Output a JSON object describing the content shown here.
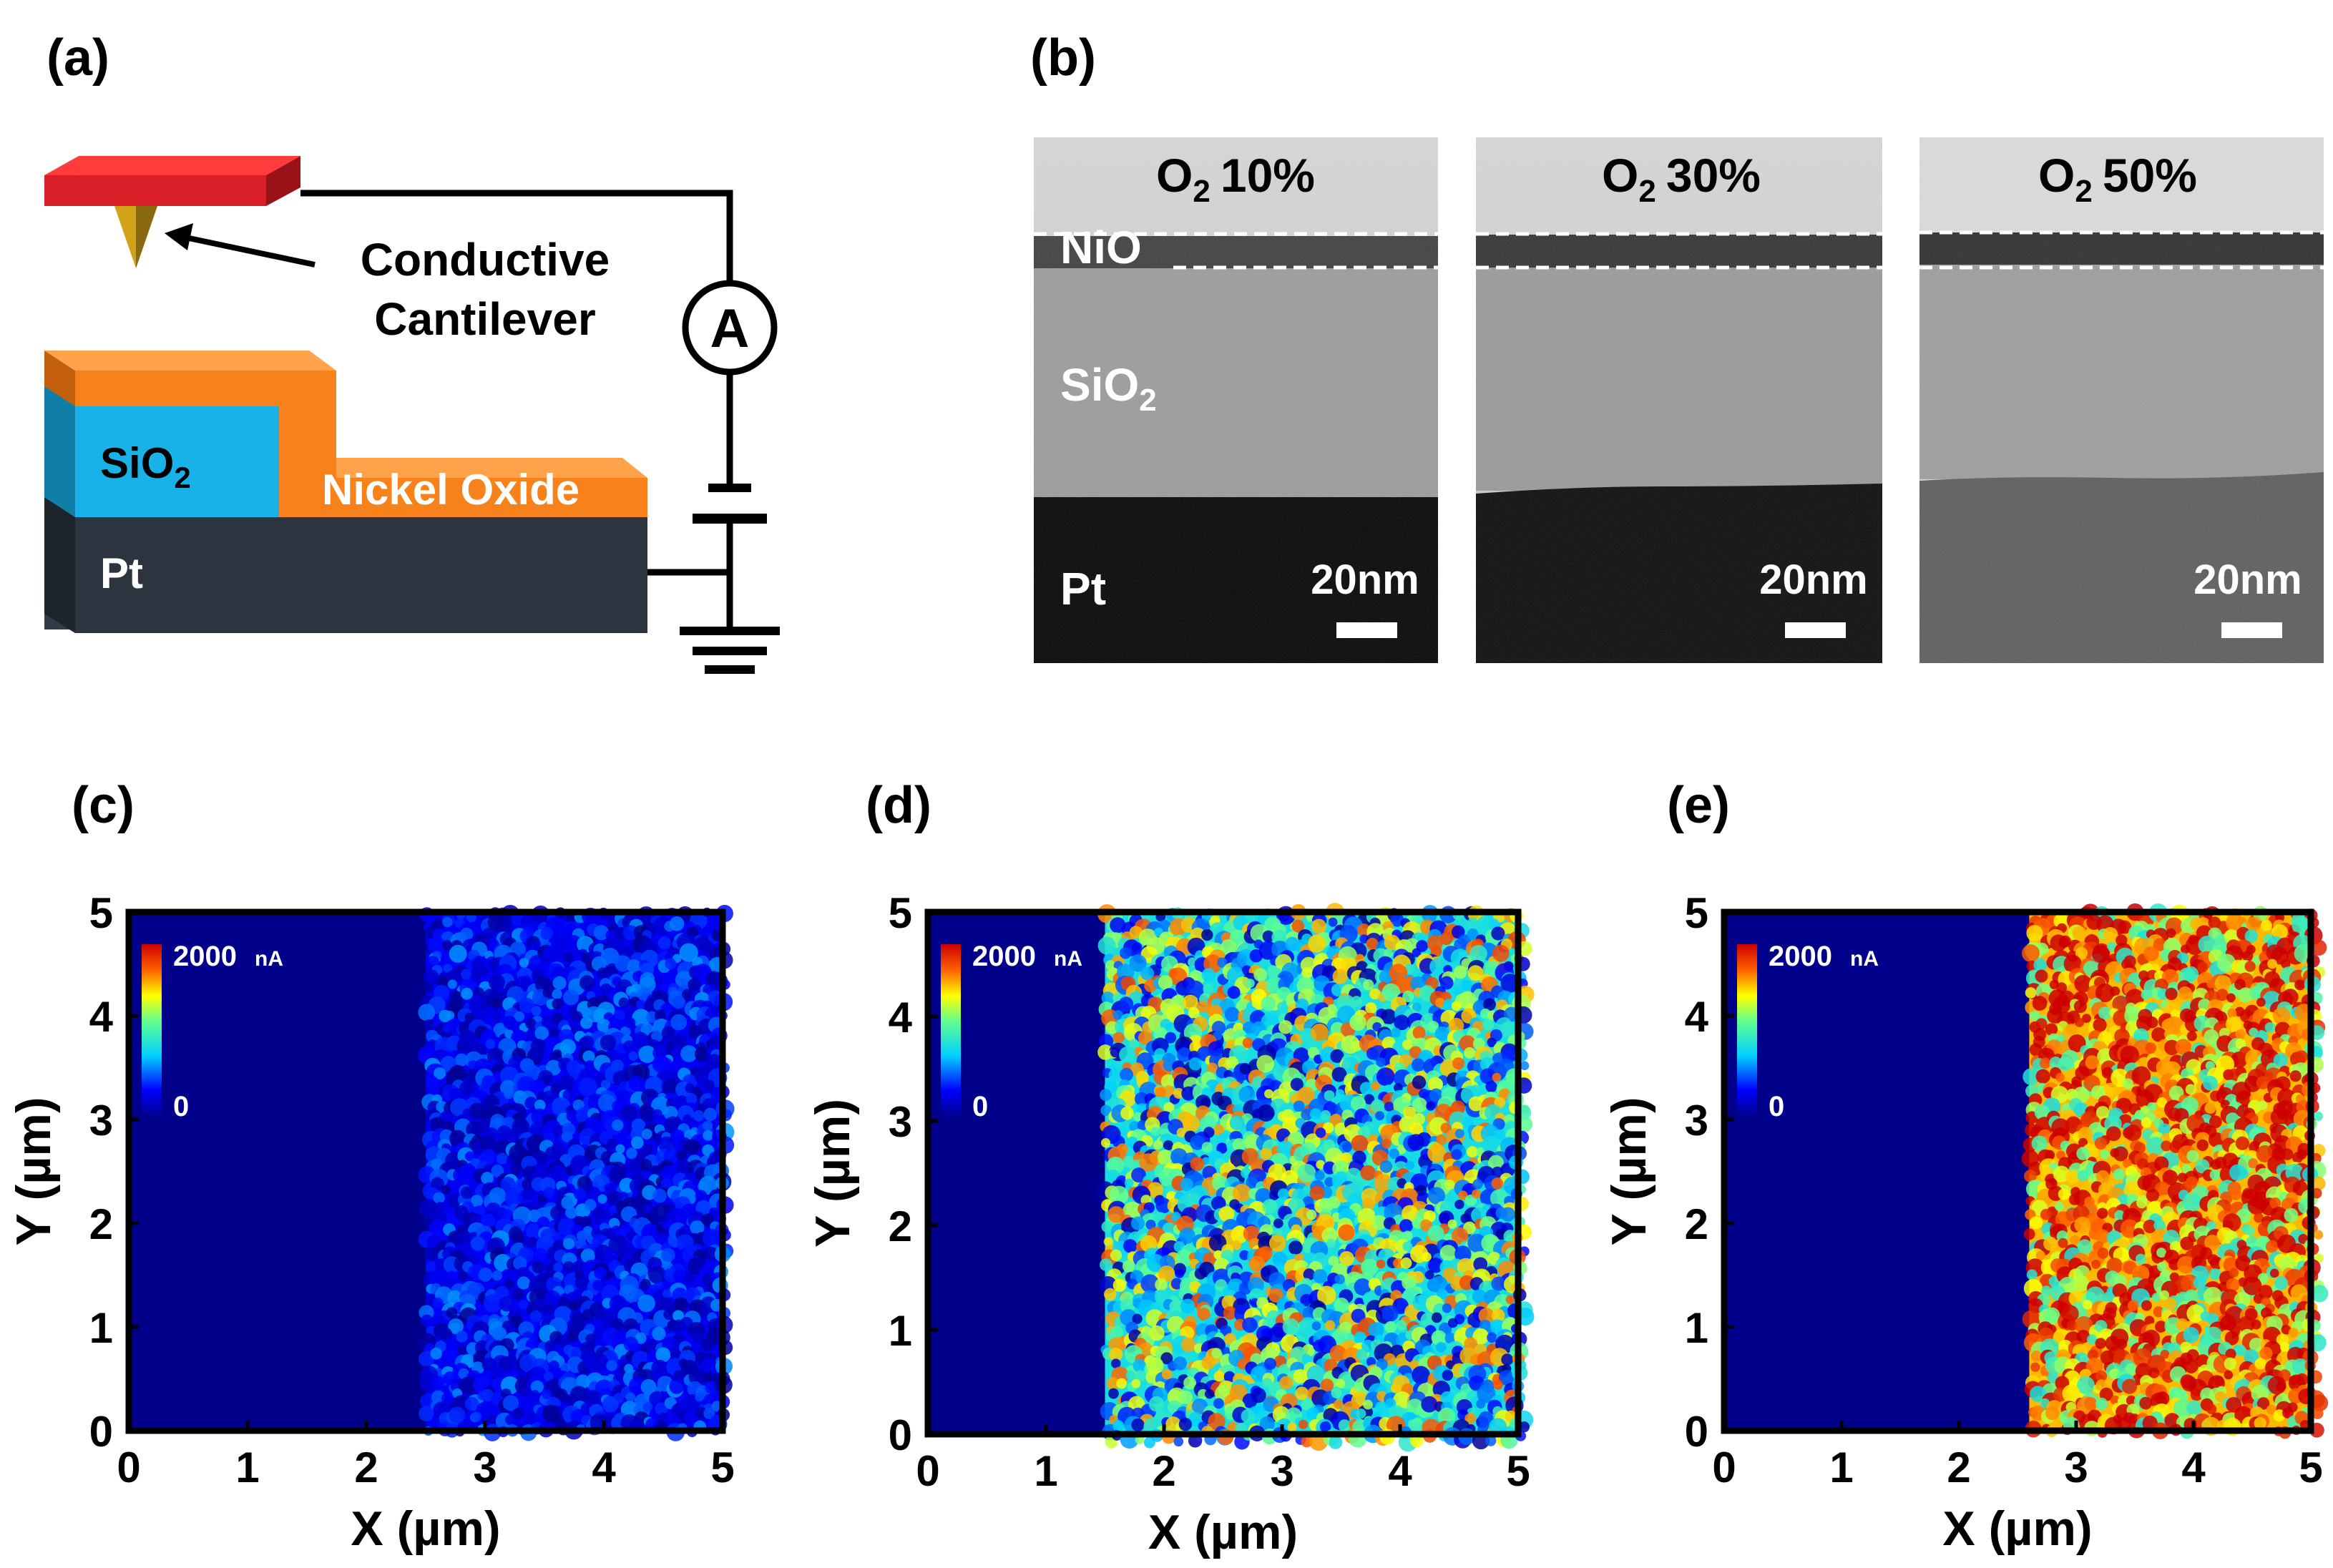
{
  "panels": {
    "a": "(a)",
    "b": "(b)",
    "c": "(c)",
    "d": "(d)",
    "e": "(e)"
  },
  "schematic": {
    "cantilever_label_line1": "Conductive",
    "cantilever_label_line2": "Cantilever",
    "ammeter": "A",
    "sio2_main": "SiO",
    "sio2_sub": "2",
    "nickel_oxide": "Nickel Oxide",
    "pt": "Pt",
    "colors": {
      "cantilever": "#e8202a",
      "tip": "#c9a21a",
      "nio": "#f7821b",
      "sio2": "#19b2e8",
      "pt": "#2c3440"
    }
  },
  "tem": {
    "images": [
      {
        "o2_main": "O",
        "o2_sub": "2",
        "o2_value": "10%",
        "scale_bar": "20nm"
      },
      {
        "o2_main": "O",
        "o2_sub": "2",
        "o2_value": "30%",
        "scale_bar": "20nm"
      },
      {
        "o2_main": "O",
        "o2_sub": "2",
        "o2_value": "50%",
        "scale_bar": "20nm"
      }
    ],
    "nio_label": "NiO",
    "sio2_main": "SiO",
    "sio2_sub": "2",
    "pt_label": "Pt"
  },
  "chart_data": [
    {
      "type": "heatmap",
      "panel": "(c)",
      "title": "",
      "xlabel": "X (µm)",
      "ylabel": "Y (µm)",
      "xlim": [
        0,
        5
      ],
      "ylim": [
        0,
        5
      ],
      "xticks": [
        "0",
        "1",
        "2",
        "3",
        "4",
        "5"
      ],
      "yticks": [
        "0",
        "1",
        "2",
        "3",
        "4",
        "5"
      ],
      "colorbar": {
        "max_label": "2000",
        "unit": "nA",
        "min_label": "0"
      },
      "sio2_region_x_um": [
        0,
        2.5
      ],
      "nio_region_x_um": [
        2.5,
        5
      ],
      "nio_region_intensity": 0.15
    },
    {
      "type": "heatmap",
      "panel": "(d)",
      "title": "",
      "xlabel": "X (µm)",
      "ylabel": "Y (µm)",
      "xlim": [
        0,
        5
      ],
      "ylim": [
        0,
        5
      ],
      "xticks": [
        "0",
        "1",
        "2",
        "3",
        "4",
        "5"
      ],
      "yticks": [
        "0",
        "1",
        "2",
        "3",
        "4",
        "5"
      ],
      "colorbar": {
        "max_label": "2000",
        "unit": "nA",
        "min_label": "0"
      },
      "sio2_region_x_um": [
        0,
        1.5
      ],
      "nio_region_x_um": [
        1.5,
        5
      ],
      "nio_region_intensity": 0.45
    },
    {
      "type": "heatmap",
      "panel": "(e)",
      "title": "",
      "xlabel": "X (µm)",
      "ylabel": "Y (µm)",
      "xlim": [
        0,
        5
      ],
      "ylim": [
        0,
        5
      ],
      "xticks": [
        "0",
        "1",
        "2",
        "3",
        "4",
        "5"
      ],
      "yticks": [
        "0",
        "1",
        "2",
        "3",
        "4",
        "5"
      ],
      "colorbar": {
        "max_label": "2000",
        "unit": "nA",
        "min_label": "0"
      },
      "sio2_region_x_um": [
        0,
        2.6
      ],
      "nio_region_x_um": [
        2.6,
        5
      ],
      "nio_region_intensity": 0.85
    }
  ]
}
